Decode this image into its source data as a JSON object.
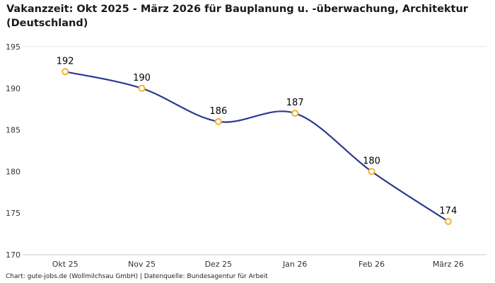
{
  "header": {
    "title_line1": "Vakanzzeit: Okt 2025 - März 2026 für Bauplanung u. -überwachung, Architektur",
    "title_line2": "(Deutschland)"
  },
  "chart_data": {
    "type": "line",
    "title": "Vakanzzeit: Okt 2025 - März 2026 für Bauplanung u. -überwachung, Architektur (Deutschland)",
    "categories": [
      "Okt 25",
      "Nov 25",
      "Dez 25",
      "Jan 26",
      "Feb 26",
      "März 26"
    ],
    "values": [
      192,
      190,
      186,
      187,
      180,
      174
    ],
    "xlabel": "",
    "ylabel": "",
    "ylim": [
      170,
      195
    ],
    "yticks": [
      170,
      175,
      180,
      185,
      190,
      195
    ],
    "grid": "top-rule-and-baseline-only",
    "legend": "none",
    "line_color": "#2b3990",
    "marker_color": "#f0b429",
    "marker_fill": "#ffffff",
    "axis_color": "#c9c9c9",
    "tick_label_color": "#333333",
    "value_label_color": "#000000"
  },
  "footer": {
    "credit": "Chart: gute-jobs.de (Wollmilchsau GmbH) | Datenquelle: Bundesagentur für Arbeit"
  }
}
